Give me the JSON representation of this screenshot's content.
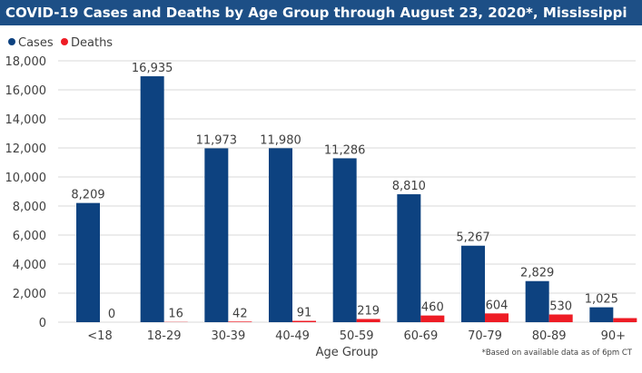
{
  "chart_data": {
    "type": "bar",
    "title": "COVID-19 Cases and Deaths by Age Group through August 23, 2020*, Mississippi",
    "xlabel": "Age Group",
    "ylabel": "",
    "ylim": [
      0,
      18000
    ],
    "yticks": [
      "0",
      "2,000",
      "4,000",
      "6,000",
      "8,000",
      "10,000",
      "12,000",
      "14,000",
      "16,000",
      "18,000"
    ],
    "grid": true,
    "legend_position": "top-left",
    "categories": [
      "<18",
      "18-29",
      "30-39",
      "40-49",
      "50-59",
      "60-69",
      "70-79",
      "80-89",
      "90+"
    ],
    "series": [
      {
        "name": "Cases",
        "color": "#0d4280",
        "values": [
          8209,
          16935,
          11973,
          11980,
          11286,
          8810,
          5267,
          2829,
          1025
        ],
        "labels": [
          "8,209",
          "16,935",
          "11,973",
          "11,980",
          "11,286",
          "8,810",
          "5,267",
          "2,829",
          "1,025"
        ]
      },
      {
        "name": "Deaths",
        "color": "#ee1c25",
        "values": [
          0,
          16,
          42,
          91,
          219,
          460,
          604,
          530,
          280
        ],
        "labels": [
          "0",
          "16",
          "42",
          "91",
          "219",
          "460",
          "604",
          "530",
          ""
        ]
      }
    ],
    "footnote": "*Based on available data as of 6pm CT"
  }
}
